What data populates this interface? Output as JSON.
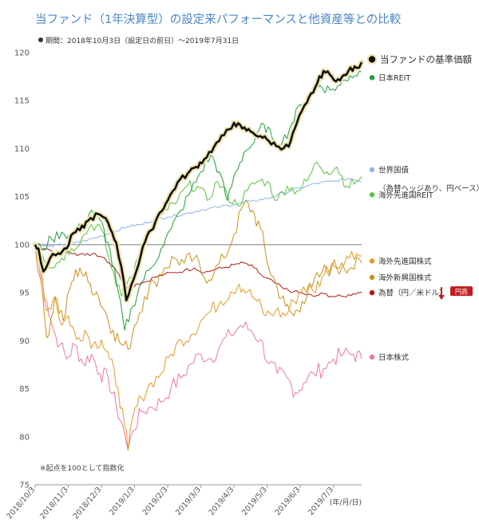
{
  "header": {
    "title": "当ファンド（1年決算型）の設定来パフォーマンスと他資産等との比較",
    "period": "期間：2018年10月3日（設定日の前日）～2019年7月31日"
  },
  "chart_data": {
    "type": "line",
    "x_labels": [
      "2018/10/3",
      "2018/11/3",
      "2018/12/3",
      "2019/1/3",
      "2019/2/3",
      "2019/3/3",
      "2019/4/3",
      "2019/5/3",
      "2019/6/3",
      "2019/7/3"
    ],
    "x_unit_label": "(年/月/日)",
    "ylim": [
      75,
      122
    ],
    "yticks": [
      75,
      80,
      85,
      90,
      95,
      100,
      105,
      110,
      115,
      120
    ],
    "note": "※起点を100として指数化",
    "badge": "円高",
    "series": [
      {
        "name": "当ファンドの基準価額",
        "suffix": "※",
        "color": "#111111",
        "legend_y": 119.3,
        "points": [
          [
            0,
            100
          ],
          [
            0.1,
            99.6
          ],
          [
            0.25,
            97.2
          ],
          [
            0.45,
            98.6
          ],
          [
            0.7,
            99.1
          ],
          [
            0.95,
            99.6
          ],
          [
            1.15,
            101.2
          ],
          [
            1.35,
            101.5
          ],
          [
            1.6,
            102.5
          ],
          [
            1.9,
            103.2
          ],
          [
            2.2,
            102.3
          ],
          [
            2.45,
            100.2
          ],
          [
            2.6,
            97.7
          ],
          [
            2.75,
            94.2
          ],
          [
            2.9,
            95.8
          ],
          [
            3.05,
            97.2
          ],
          [
            3.25,
            99.8
          ],
          [
            3.5,
            101.5
          ],
          [
            3.75,
            103.3
          ],
          [
            4.0,
            104.6
          ],
          [
            4.3,
            106.5
          ],
          [
            4.6,
            107.4
          ],
          [
            4.85,
            108.1
          ],
          [
            5.1,
            108.9
          ],
          [
            5.4,
            110.2
          ],
          [
            5.7,
            111.4
          ],
          [
            6.0,
            112.7
          ],
          [
            6.25,
            112.1
          ],
          [
            6.5,
            111.8
          ],
          [
            6.8,
            111.3
          ],
          [
            7.05,
            110.8
          ],
          [
            7.35,
            110.2
          ],
          [
            7.65,
            110.2
          ],
          [
            7.9,
            112.7
          ],
          [
            8.2,
            114.8
          ],
          [
            8.45,
            116.4
          ],
          [
            8.7,
            118.1
          ],
          [
            8.95,
            117.5
          ],
          [
            9.2,
            117.1
          ],
          [
            9.45,
            118.1
          ],
          [
            9.7,
            118.4
          ],
          [
            9.85,
            119.0
          ]
        ]
      },
      {
        "name": "日本REIT",
        "color": "#1f9e3a",
        "legend_y": 117.4,
        "points": [
          [
            0,
            100
          ],
          [
            0.2,
            99.5
          ],
          [
            0.5,
            100.6
          ],
          [
            0.8,
            101.3
          ],
          [
            1.1,
            100.9
          ],
          [
            1.4,
            101.9
          ],
          [
            1.7,
            103.6
          ],
          [
            1.95,
            102.6
          ],
          [
            2.2,
            100.2
          ],
          [
            2.45,
            96.1
          ],
          [
            2.7,
            91.1
          ],
          [
            2.95,
            93.6
          ],
          [
            3.2,
            96.1
          ],
          [
            3.5,
            97.6
          ],
          [
            3.8,
            99.6
          ],
          [
            4.1,
            101.6
          ],
          [
            4.4,
            103.6
          ],
          [
            4.7,
            105.6
          ],
          [
            5.0,
            107.6
          ],
          [
            5.3,
            109.3
          ],
          [
            5.55,
            107.6
          ],
          [
            5.8,
            104.6
          ],
          [
            6.05,
            107.6
          ],
          [
            6.3,
            109.6
          ],
          [
            6.6,
            110.6
          ],
          [
            6.9,
            112.6
          ],
          [
            7.15,
            111.1
          ],
          [
            7.45,
            110.6
          ],
          [
            7.75,
            112.6
          ],
          [
            8.0,
            114.6
          ],
          [
            8.3,
            115.6
          ],
          [
            8.6,
            116.6
          ],
          [
            8.9,
            116.1
          ],
          [
            9.2,
            116.6
          ],
          [
            9.5,
            117.6
          ],
          [
            9.85,
            118.0
          ]
        ]
      },
      {
        "name": "世界国債",
        "sublabel": "（為替ヘッジあり、円ベース）",
        "color": "#8fb4e3",
        "legend_y": 107.8,
        "points": [
          [
            0,
            100
          ],
          [
            0.4,
            99.8
          ],
          [
            0.8,
            100
          ],
          [
            1.2,
            100.2
          ],
          [
            1.6,
            100.5
          ],
          [
            2.0,
            100.9
          ],
          [
            2.4,
            101.4
          ],
          [
            2.8,
            101.9
          ],
          [
            3.2,
            102.1
          ],
          [
            3.6,
            102.6
          ],
          [
            4.0,
            102.9
          ],
          [
            4.5,
            103.2
          ],
          [
            5.0,
            103.6
          ],
          [
            5.5,
            103.9
          ],
          [
            6.0,
            104.2
          ],
          [
            6.5,
            104.5
          ],
          [
            7.0,
            104.8
          ],
          [
            7.5,
            105.4
          ],
          [
            8.0,
            105.9
          ],
          [
            8.5,
            106.4
          ],
          [
            9.0,
            106.6
          ],
          [
            9.5,
            106.9
          ],
          [
            9.85,
            106.6
          ]
        ]
      },
      {
        "name": "海外先進国REIT",
        "color": "#5cc344",
        "legend_y": 105.2,
        "points": [
          [
            0,
            100
          ],
          [
            0.2,
            99.1
          ],
          [
            0.5,
            97.6
          ],
          [
            0.8,
            98.6
          ],
          [
            1.1,
            99.6
          ],
          [
            1.4,
            100.6
          ],
          [
            1.7,
            102.1
          ],
          [
            2.0,
            101.6
          ],
          [
            2.3,
            97.6
          ],
          [
            2.6,
            94.6
          ],
          [
            2.85,
            96.6
          ],
          [
            3.1,
            98.6
          ],
          [
            3.4,
            100.6
          ],
          [
            3.7,
            102.6
          ],
          [
            4.0,
            103.6
          ],
          [
            4.3,
            104.6
          ],
          [
            4.6,
            106.1
          ],
          [
            4.9,
            106.1
          ],
          [
            5.2,
            104.6
          ],
          [
            5.5,
            106.6
          ],
          [
            5.8,
            105.1
          ],
          [
            6.1,
            104.1
          ],
          [
            6.4,
            105.6
          ],
          [
            6.7,
            106.6
          ],
          [
            7.0,
            106.6
          ],
          [
            7.3,
            104.6
          ],
          [
            7.6,
            106.1
          ],
          [
            7.9,
            105.6
          ],
          [
            8.2,
            106.6
          ],
          [
            8.5,
            108.6
          ],
          [
            8.8,
            107.6
          ],
          [
            9.1,
            108.1
          ],
          [
            9.4,
            106.1
          ],
          [
            9.7,
            106.6
          ],
          [
            9.85,
            107.1
          ]
        ]
      },
      {
        "name": "海外先進国株式",
        "color": "#e69a26",
        "legend_y": 98.3,
        "points": [
          [
            0,
            100
          ],
          [
            0.15,
            98.1
          ],
          [
            0.35,
            93.1
          ],
          [
            0.6,
            94.6
          ],
          [
            0.8,
            91.6
          ],
          [
            1.0,
            92.6
          ],
          [
            1.25,
            90.1
          ],
          [
            1.5,
            91.1
          ],
          [
            1.75,
            89.6
          ],
          [
            2.0,
            90.1
          ],
          [
            2.25,
            88.1
          ],
          [
            2.5,
            85.1
          ],
          [
            2.7,
            81.1
          ],
          [
            2.8,
            78.6
          ],
          [
            2.95,
            82.1
          ],
          [
            3.2,
            84.1
          ],
          [
            3.5,
            85.6
          ],
          [
            3.8,
            86.6
          ],
          [
            4.1,
            88.6
          ],
          [
            4.4,
            90.1
          ],
          [
            4.7,
            90.6
          ],
          [
            5.0,
            92.1
          ],
          [
            5.3,
            93.1
          ],
          [
            5.6,
            94.1
          ],
          [
            5.9,
            95.1
          ],
          [
            6.15,
            95.9
          ],
          [
            6.4,
            95.1
          ],
          [
            6.7,
            94.1
          ],
          [
            6.95,
            92.6
          ],
          [
            7.25,
            93.1
          ],
          [
            7.55,
            92.6
          ],
          [
            7.8,
            94.1
          ],
          [
            8.1,
            95.6
          ],
          [
            8.4,
            95.1
          ],
          [
            8.65,
            96.6
          ],
          [
            8.95,
            98.1
          ],
          [
            9.25,
            97.6
          ],
          [
            9.55,
            99.3
          ],
          [
            9.85,
            98.8
          ]
        ]
      },
      {
        "name": "海外新興国株式",
        "color": "#c89216",
        "legend_y": 96.6,
        "points": [
          [
            0,
            100
          ],
          [
            0.15,
            96.6
          ],
          [
            0.35,
            90.3
          ],
          [
            0.6,
            94.6
          ],
          [
            0.85,
            92.1
          ],
          [
            1.1,
            96.1
          ],
          [
            1.35,
            97.6
          ],
          [
            1.6,
            96.1
          ],
          [
            1.85,
            95.1
          ],
          [
            2.1,
            93.1
          ],
          [
            2.35,
            91.1
          ],
          [
            2.6,
            89.6
          ],
          [
            2.8,
            89.1
          ],
          [
            3.0,
            91.6
          ],
          [
            3.3,
            94.6
          ],
          [
            3.6,
            96.1
          ],
          [
            3.9,
            97.6
          ],
          [
            4.2,
            98.6
          ],
          [
            4.5,
            98.1
          ],
          [
            4.8,
            98.6
          ],
          [
            5.1,
            96.6
          ],
          [
            5.4,
            97.1
          ],
          [
            5.7,
            98.6
          ],
          [
            6.0,
            101.1
          ],
          [
            6.3,
            104.3
          ],
          [
            6.55,
            103.6
          ],
          [
            6.8,
            101.6
          ],
          [
            7.05,
            97.6
          ],
          [
            7.3,
            95.6
          ],
          [
            7.55,
            93.6
          ],
          [
            7.8,
            92.6
          ],
          [
            8.05,
            94.1
          ],
          [
            8.35,
            95.6
          ],
          [
            8.65,
            97.1
          ],
          [
            8.95,
            97.6
          ],
          [
            9.25,
            98.1
          ],
          [
            9.55,
            97.6
          ],
          [
            9.85,
            98.1
          ]
        ]
      },
      {
        "name": "為替（円／米ドル）",
        "color": "#b01818",
        "legend_y": 95.0,
        "points": [
          [
            0,
            100
          ],
          [
            0.3,
            99.6
          ],
          [
            0.6,
            99.1
          ],
          [
            0.9,
            99.6
          ],
          [
            1.2,
            99.1
          ],
          [
            1.5,
            98.9
          ],
          [
            1.8,
            99.1
          ],
          [
            2.1,
            98.6
          ],
          [
            2.4,
            97.6
          ],
          [
            2.65,
            96.1
          ],
          [
            2.85,
            95.6
          ],
          [
            3.05,
            95.9
          ],
          [
            3.3,
            96.1
          ],
          [
            3.6,
            96.6
          ],
          [
            3.9,
            96.9
          ],
          [
            4.2,
            97.1
          ],
          [
            4.5,
            97.3
          ],
          [
            4.8,
            97.6
          ],
          [
            5.1,
            97.1
          ],
          [
            5.4,
            97.4
          ],
          [
            5.7,
            97.6
          ],
          [
            6.0,
            97.9
          ],
          [
            6.3,
            98.1
          ],
          [
            6.6,
            97.6
          ],
          [
            6.9,
            96.6
          ],
          [
            7.2,
            96.1
          ],
          [
            7.5,
            95.4
          ],
          [
            7.8,
            95.1
          ],
          [
            8.1,
            94.9
          ],
          [
            8.4,
            94.6
          ],
          [
            8.7,
            94.9
          ],
          [
            9.0,
            94.6
          ],
          [
            9.3,
            94.6
          ],
          [
            9.6,
            94.9
          ],
          [
            9.85,
            95.1
          ]
        ]
      },
      {
        "name": "日本株式",
        "color": "#ec78a6",
        "legend_y": 88.3,
        "points": [
          [
            0,
            100
          ],
          [
            0.15,
            97.1
          ],
          [
            0.35,
            94.1
          ],
          [
            0.55,
            91.1
          ],
          [
            0.75,
            89.6
          ],
          [
            0.95,
            88.1
          ],
          [
            1.2,
            89.6
          ],
          [
            1.45,
            87.6
          ],
          [
            1.7,
            88.6
          ],
          [
            1.95,
            86.6
          ],
          [
            2.2,
            86.1
          ],
          [
            2.45,
            83.1
          ],
          [
            2.65,
            81.1
          ],
          [
            2.8,
            78.6
          ],
          [
            2.95,
            80.6
          ],
          [
            3.2,
            82.6
          ],
          [
            3.5,
            83.1
          ],
          [
            3.8,
            83.6
          ],
          [
            4.1,
            85.1
          ],
          [
            4.4,
            86.1
          ],
          [
            4.7,
            87.6
          ],
          [
            5.0,
            88.6
          ],
          [
            5.3,
            88.1
          ],
          [
            5.6,
            89.6
          ],
          [
            5.9,
            90.6
          ],
          [
            6.2,
            91.6
          ],
          [
            6.5,
            91.1
          ],
          [
            6.8,
            90.1
          ],
          [
            7.05,
            87.6
          ],
          [
            7.3,
            86.6
          ],
          [
            7.6,
            86.1
          ],
          [
            7.85,
            84.6
          ],
          [
            8.1,
            85.6
          ],
          [
            8.4,
            86.6
          ],
          [
            8.7,
            87.1
          ],
          [
            9.0,
            88.1
          ],
          [
            9.3,
            88.6
          ],
          [
            9.6,
            88.6
          ],
          [
            9.85,
            88.1
          ]
        ]
      }
    ]
  }
}
